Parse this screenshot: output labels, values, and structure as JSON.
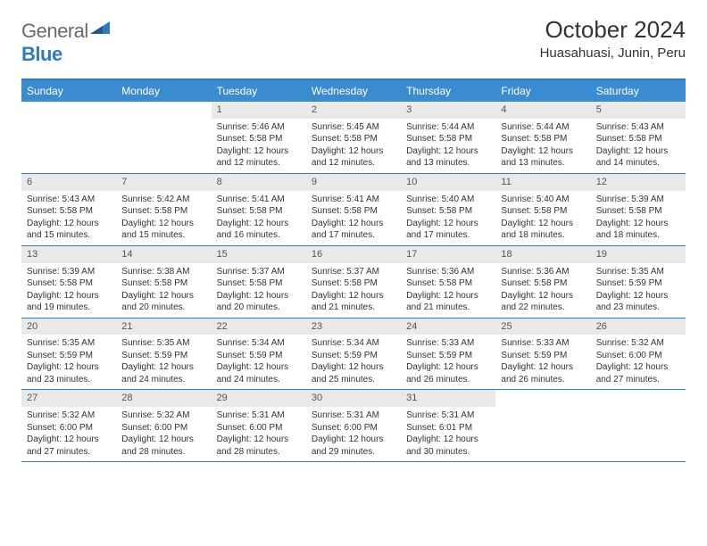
{
  "logo": {
    "part1": "General",
    "part2": "Blue"
  },
  "title": "October 2024",
  "location": "Huasahuasi, Junin, Peru",
  "colors": {
    "header_bg": "#3b8bd0",
    "border": "#2d7cc0",
    "daynum_bg": "#e9e9e9",
    "text": "#333333",
    "page_bg": "#ffffff"
  },
  "day_names": [
    "Sunday",
    "Monday",
    "Tuesday",
    "Wednesday",
    "Thursday",
    "Friday",
    "Saturday"
  ],
  "weeks": [
    [
      {
        "n": "",
        "sr": "",
        "ss": "",
        "dl": ""
      },
      {
        "n": "",
        "sr": "",
        "ss": "",
        "dl": ""
      },
      {
        "n": "1",
        "sr": "Sunrise: 5:46 AM",
        "ss": "Sunset: 5:58 PM",
        "dl": "Daylight: 12 hours and 12 minutes."
      },
      {
        "n": "2",
        "sr": "Sunrise: 5:45 AM",
        "ss": "Sunset: 5:58 PM",
        "dl": "Daylight: 12 hours and 12 minutes."
      },
      {
        "n": "3",
        "sr": "Sunrise: 5:44 AM",
        "ss": "Sunset: 5:58 PM",
        "dl": "Daylight: 12 hours and 13 minutes."
      },
      {
        "n": "4",
        "sr": "Sunrise: 5:44 AM",
        "ss": "Sunset: 5:58 PM",
        "dl": "Daylight: 12 hours and 13 minutes."
      },
      {
        "n": "5",
        "sr": "Sunrise: 5:43 AM",
        "ss": "Sunset: 5:58 PM",
        "dl": "Daylight: 12 hours and 14 minutes."
      }
    ],
    [
      {
        "n": "6",
        "sr": "Sunrise: 5:43 AM",
        "ss": "Sunset: 5:58 PM",
        "dl": "Daylight: 12 hours and 15 minutes."
      },
      {
        "n": "7",
        "sr": "Sunrise: 5:42 AM",
        "ss": "Sunset: 5:58 PM",
        "dl": "Daylight: 12 hours and 15 minutes."
      },
      {
        "n": "8",
        "sr": "Sunrise: 5:41 AM",
        "ss": "Sunset: 5:58 PM",
        "dl": "Daylight: 12 hours and 16 minutes."
      },
      {
        "n": "9",
        "sr": "Sunrise: 5:41 AM",
        "ss": "Sunset: 5:58 PM",
        "dl": "Daylight: 12 hours and 17 minutes."
      },
      {
        "n": "10",
        "sr": "Sunrise: 5:40 AM",
        "ss": "Sunset: 5:58 PM",
        "dl": "Daylight: 12 hours and 17 minutes."
      },
      {
        "n": "11",
        "sr": "Sunrise: 5:40 AM",
        "ss": "Sunset: 5:58 PM",
        "dl": "Daylight: 12 hours and 18 minutes."
      },
      {
        "n": "12",
        "sr": "Sunrise: 5:39 AM",
        "ss": "Sunset: 5:58 PM",
        "dl": "Daylight: 12 hours and 18 minutes."
      }
    ],
    [
      {
        "n": "13",
        "sr": "Sunrise: 5:39 AM",
        "ss": "Sunset: 5:58 PM",
        "dl": "Daylight: 12 hours and 19 minutes."
      },
      {
        "n": "14",
        "sr": "Sunrise: 5:38 AM",
        "ss": "Sunset: 5:58 PM",
        "dl": "Daylight: 12 hours and 20 minutes."
      },
      {
        "n": "15",
        "sr": "Sunrise: 5:37 AM",
        "ss": "Sunset: 5:58 PM",
        "dl": "Daylight: 12 hours and 20 minutes."
      },
      {
        "n": "16",
        "sr": "Sunrise: 5:37 AM",
        "ss": "Sunset: 5:58 PM",
        "dl": "Daylight: 12 hours and 21 minutes."
      },
      {
        "n": "17",
        "sr": "Sunrise: 5:36 AM",
        "ss": "Sunset: 5:58 PM",
        "dl": "Daylight: 12 hours and 21 minutes."
      },
      {
        "n": "18",
        "sr": "Sunrise: 5:36 AM",
        "ss": "Sunset: 5:58 PM",
        "dl": "Daylight: 12 hours and 22 minutes."
      },
      {
        "n": "19",
        "sr": "Sunrise: 5:35 AM",
        "ss": "Sunset: 5:59 PM",
        "dl": "Daylight: 12 hours and 23 minutes."
      }
    ],
    [
      {
        "n": "20",
        "sr": "Sunrise: 5:35 AM",
        "ss": "Sunset: 5:59 PM",
        "dl": "Daylight: 12 hours and 23 minutes."
      },
      {
        "n": "21",
        "sr": "Sunrise: 5:35 AM",
        "ss": "Sunset: 5:59 PM",
        "dl": "Daylight: 12 hours and 24 minutes."
      },
      {
        "n": "22",
        "sr": "Sunrise: 5:34 AM",
        "ss": "Sunset: 5:59 PM",
        "dl": "Daylight: 12 hours and 24 minutes."
      },
      {
        "n": "23",
        "sr": "Sunrise: 5:34 AM",
        "ss": "Sunset: 5:59 PM",
        "dl": "Daylight: 12 hours and 25 minutes."
      },
      {
        "n": "24",
        "sr": "Sunrise: 5:33 AM",
        "ss": "Sunset: 5:59 PM",
        "dl": "Daylight: 12 hours and 26 minutes."
      },
      {
        "n": "25",
        "sr": "Sunrise: 5:33 AM",
        "ss": "Sunset: 5:59 PM",
        "dl": "Daylight: 12 hours and 26 minutes."
      },
      {
        "n": "26",
        "sr": "Sunrise: 5:32 AM",
        "ss": "Sunset: 6:00 PM",
        "dl": "Daylight: 12 hours and 27 minutes."
      }
    ],
    [
      {
        "n": "27",
        "sr": "Sunrise: 5:32 AM",
        "ss": "Sunset: 6:00 PM",
        "dl": "Daylight: 12 hours and 27 minutes."
      },
      {
        "n": "28",
        "sr": "Sunrise: 5:32 AM",
        "ss": "Sunset: 6:00 PM",
        "dl": "Daylight: 12 hours and 28 minutes."
      },
      {
        "n": "29",
        "sr": "Sunrise: 5:31 AM",
        "ss": "Sunset: 6:00 PM",
        "dl": "Daylight: 12 hours and 28 minutes."
      },
      {
        "n": "30",
        "sr": "Sunrise: 5:31 AM",
        "ss": "Sunset: 6:00 PM",
        "dl": "Daylight: 12 hours and 29 minutes."
      },
      {
        "n": "31",
        "sr": "Sunrise: 5:31 AM",
        "ss": "Sunset: 6:01 PM",
        "dl": "Daylight: 12 hours and 30 minutes."
      },
      {
        "n": "",
        "sr": "",
        "ss": "",
        "dl": ""
      },
      {
        "n": "",
        "sr": "",
        "ss": "",
        "dl": ""
      }
    ]
  ]
}
